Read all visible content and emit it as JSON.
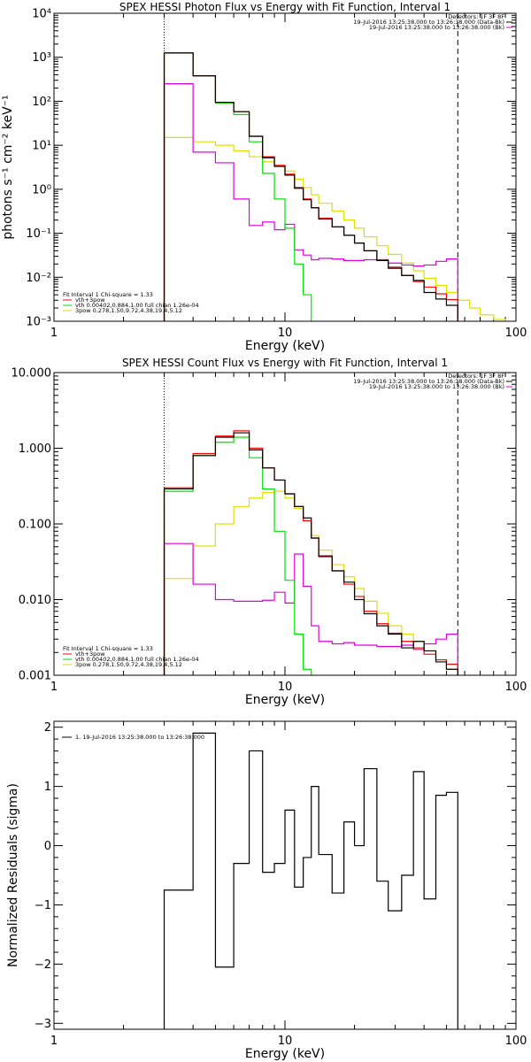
{
  "chart_data": [
    {
      "type": "line",
      "title": "SPEX HESSI Photon Flux vs Energy with Fit Function, Interval 1",
      "xlabel": "Energy (keV)",
      "ylabel": "photons s⁻¹ cm⁻² keV⁻¹",
      "xscale": "log",
      "yscale": "log",
      "xlim": [
        1,
        100
      ],
      "ylim": [
        0.001,
        10000
      ],
      "x_ticks": [
        1,
        10,
        100
      ],
      "x_tick_labels": [
        "1",
        "10",
        "100"
      ],
      "y_ticks": [
        0.001,
        0.01,
        0.1,
        1,
        10,
        100,
        1000,
        10000
      ],
      "y_tick_labels": [
        "10⁻³",
        "10⁻²",
        "10⁻¹",
        "10⁰",
        "10¹",
        "10²",
        "10³",
        "10⁴"
      ],
      "vlines": [
        {
          "x": 3,
          "style": "dotted"
        },
        {
          "x": 56,
          "style": "dashed"
        }
      ],
      "header_lines": [
        "Detectors: 1F 3F 8F",
        "19-Jul-2016 13:25:38.000 to 13:26:38.000 (Data-Bk)",
        "19-Jul-2016 13:25:38.000 to 13:26:38.000 (Bk)"
      ],
      "header_colors": [
        "#000000",
        "#000000",
        "#e000e0"
      ],
      "legend_title": "Fit Interval 1   Chi-square = 1.33",
      "legend_labels": [
        "vth+3pow",
        "vth 0.00402,0.884,1.00  full chian 1.26e-04",
        "3pow 0.278,1.50,9.72,4.38,19.4,5.12"
      ],
      "legend_colors": [
        "#ff0000",
        "#00e000",
        "#e0e000"
      ],
      "edges": [
        3,
        4,
        5,
        6,
        7,
        8,
        9,
        10,
        11,
        12,
        13,
        14,
        16,
        18,
        20,
        22,
        25,
        28,
        32,
        36,
        40,
        45,
        50,
        56,
        63,
        70,
        80,
        90,
        100
      ],
      "series": [
        {
          "color": "#000000",
          "values": [
            1250,
            380,
            95,
            58,
            16,
            5.2,
            3.3,
            2.1,
            1.05,
            0.58,
            0.38,
            0.21,
            0.14,
            0.09,
            0.06,
            0.04,
            0.024,
            0.016,
            0.011,
            0.0085,
            0.0045,
            0.0032,
            0.0023
          ]
        },
        {
          "color": "#ff0000",
          "values": [
            1250,
            380,
            95,
            58,
            16,
            5.5,
            3.5,
            2.2,
            1.1,
            0.6,
            0.38,
            0.22,
            0.14,
            0.09,
            0.06,
            0.04,
            0.025,
            0.017,
            0.011,
            0.008,
            0.006,
            0.0042,
            0.0031
          ]
        },
        {
          "color": "#00e000",
          "values": [
            1250,
            380,
            90,
            50,
            12,
            2.3,
            0.6,
            0.13,
            0.02,
            0.004,
            0.0007
          ]
        },
        {
          "color": "#e000e0",
          "values": [
            250,
            7,
            4,
            0.6,
            0.15,
            0.18,
            0.12,
            0.16,
            0.042,
            0.032,
            0.025,
            0.027,
            0.026,
            0.024,
            0.024,
            0.025,
            0.024,
            0.021,
            0.019,
            0.018,
            0.019,
            0.023,
            0.026
          ]
        },
        {
          "color": "#e0e000",
          "values": [
            15,
            12,
            10,
            7.5,
            5.5,
            4.2,
            3.3,
            2.6,
            1.7,
            1.1,
            0.75,
            0.48,
            0.32,
            0.2,
            0.13,
            0.083,
            0.052,
            0.033,
            0.021,
            0.014,
            0.0095,
            0.0065,
            0.0045,
            0.003,
            0.002,
            0.0014,
            0.0011,
            0.0009
          ]
        }
      ]
    },
    {
      "type": "line",
      "title": "SPEX HESSI Count Flux vs Energy with Fit Function, Interval 1",
      "xlabel": "Energy (keV)",
      "ylabel": "",
      "xscale": "log",
      "yscale": "log",
      "xlim": [
        1,
        100
      ],
      "ylim": [
        0.001,
        10
      ],
      "x_ticks": [
        1,
        10,
        100
      ],
      "x_tick_labels": [
        "1",
        "10",
        "100"
      ],
      "y_ticks": [
        0.001,
        0.01,
        0.1,
        1,
        10
      ],
      "y_tick_labels": [
        "0.001",
        "0.010",
        "0.100",
        "1.000",
        "10.000"
      ],
      "vlines": [
        {
          "x": 3,
          "style": "dotted"
        },
        {
          "x": 56,
          "style": "dashed"
        }
      ],
      "header_lines": [
        "Detectors: 1F 3F 8F",
        "19-Jul-2016 13:25:38.000 to 13:26:38.000 (Data-Bk)",
        "19-Jul-2016 13:25:38.000 to 13:26:38.000 (Bk)"
      ],
      "header_colors": [
        "#000000",
        "#000000",
        "#e000e0"
      ],
      "legend_title": "Fit Interval 1   Chi-square = 1.33",
      "legend_labels": [
        "vth+3pow",
        "vth 0.00402,0.884,1.00  full chian 1.26e-04",
        "3pow 0.278,1.50,9.72,4.38,19.4,5.12"
      ],
      "legend_colors": [
        "#ff0000",
        "#00e000",
        "#e0e000"
      ],
      "edges": [
        3,
        4,
        5,
        6,
        7,
        8,
        9,
        10,
        11,
        12,
        13,
        14,
        16,
        18,
        20,
        22,
        25,
        28,
        32,
        36,
        40,
        45,
        50,
        56,
        63
      ],
      "series": [
        {
          "color": "#000000",
          "values": [
            0.29,
            0.8,
            1.4,
            1.6,
            0.95,
            0.55,
            0.38,
            0.25,
            0.17,
            0.12,
            0.065,
            0.037,
            0.024,
            0.017,
            0.01,
            0.0065,
            0.0045,
            0.0035,
            0.0023,
            0.0028,
            0.0021,
            0.0015,
            0.0012
          ]
        },
        {
          "color": "#ff0000",
          "values": [
            0.3,
            0.85,
            1.45,
            1.7,
            1.0,
            0.55,
            0.38,
            0.25,
            0.17,
            0.11,
            0.065,
            0.038,
            0.024,
            0.016,
            0.011,
            0.007,
            0.0048,
            0.0036,
            0.0028,
            0.0023,
            0.0019,
            0.0016,
            0.0014
          ]
        },
        {
          "color": "#00e000",
          "values": [
            0.27,
            0.8,
            1.2,
            1.4,
            0.75,
            0.29,
            0.08,
            0.018,
            0.0035,
            0.0012,
            0.0004
          ]
        },
        {
          "color": "#e000e0",
          "values": [
            0.055,
            0.016,
            0.01,
            0.0095,
            0.0095,
            0.0098,
            0.0125,
            0.009,
            0.04,
            0.015,
            0.0045,
            0.0028,
            0.0026,
            0.0027,
            0.0025,
            0.0025,
            0.0024,
            0.0024,
            0.0025,
            0.0022,
            0.0026,
            0.003,
            0.0035
          ]
        },
        {
          "color": "#e0e000",
          "values": [
            0.019,
            0.051,
            0.1,
            0.17,
            0.22,
            0.26,
            0.27,
            0.22,
            0.16,
            0.11,
            0.07,
            0.045,
            0.029,
            0.02,
            0.014,
            0.0095,
            0.0066,
            0.0045,
            0.0035,
            0.0028,
            0.0021,
            0.0016,
            0.0012
          ]
        }
      ]
    },
    {
      "type": "line",
      "title": "",
      "xlabel": "Energy (keV)",
      "ylabel": "Normalized Residuals (sigma)",
      "xscale": "log",
      "yscale": "linear",
      "xlim": [
        1,
        100
      ],
      "ylim": [
        -3.1,
        2.1
      ],
      "x_ticks": [
        1,
        10,
        100
      ],
      "x_tick_labels": [
        "1",
        "10",
        "100"
      ],
      "y_ticks": [
        -3,
        -2,
        -1,
        0,
        1,
        2
      ],
      "y_tick_labels": [
        "−3",
        "−2",
        "−1",
        "0",
        "1",
        "2"
      ],
      "legend_labels": [
        "1. 19-Jul-2016 13:25:38.000 to 13:26:38.000"
      ],
      "legend_colors": [
        "#000000"
      ],
      "edges": [
        3,
        4,
        5,
        6,
        7,
        8,
        9,
        10,
        11,
        12,
        13,
        14,
        16,
        18,
        20,
        22,
        25,
        28,
        32,
        36,
        40,
        45,
        50,
        56
      ],
      "series": [
        {
          "color": "#000000",
          "values": [
            -0.75,
            1.9,
            -2.05,
            -0.3,
            1.6,
            -0.45,
            -0.3,
            0.6,
            -0.7,
            -0.2,
            1.0,
            -0.15,
            -0.8,
            0.4,
            0.0,
            1.3,
            -0.6,
            -1.1,
            -0.5,
            1.25,
            -0.9,
            0.85,
            0.9
          ]
        }
      ]
    }
  ]
}
